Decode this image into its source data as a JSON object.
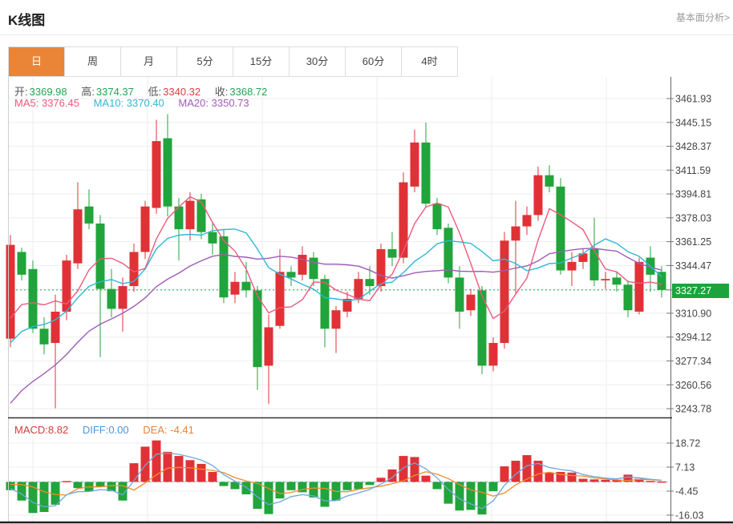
{
  "header": {
    "title": "K线图",
    "link": "基本面分析>"
  },
  "tabs": {
    "items": [
      {
        "label": "日"
      },
      {
        "label": "周"
      },
      {
        "label": "月"
      },
      {
        "label": "5分"
      },
      {
        "label": "15分"
      },
      {
        "label": "30分"
      },
      {
        "label": "60分"
      },
      {
        "label": "4时"
      }
    ],
    "active_index": 0
  },
  "legend": {
    "ohlc": [
      {
        "label": "开:",
        "value": "3369.98",
        "cls": "green"
      },
      {
        "label": "高:",
        "value": "3374.37",
        "cls": "green"
      },
      {
        "label": "低:",
        "value": "3340.32",
        "cls": "red"
      },
      {
        "label": "收:",
        "value": "3368.72",
        "cls": "green"
      }
    ],
    "ma": [
      {
        "label": "MA5:",
        "value": "3376.45"
      },
      {
        "label": "MA10:",
        "value": "3370.40"
      },
      {
        "label": "MA20:",
        "value": "3350.73"
      }
    ],
    "macd": [
      {
        "label": "MACD:",
        "value": "8.82"
      },
      {
        "label": "DIFF:",
        "value": "0.00"
      },
      {
        "label": "DEA:",
        "value": "-4.41"
      }
    ]
  },
  "current_price": "3327.27",
  "chart_data": {
    "type": "candlestick+macd",
    "title": "K线图 daily candlestick with MA5/MA10/MA20 and MACD",
    "axis_main": {
      "ticks": [
        3461.93,
        3445.15,
        3428.37,
        3411.59,
        3394.81,
        3378.03,
        3361.25,
        3344.47,
        3310.9,
        3294.12,
        3277.34,
        3260.56,
        3243.78
      ],
      "tick_step": 16.78,
      "current_price": 3327.27
    },
    "axis_macd": {
      "ticks": [
        18.72,
        7.13,
        -4.45,
        -16.03
      ]
    },
    "candles_ohlc": [
      [
        3293,
        3366,
        3287,
        3359
      ],
      [
        3354,
        3357,
        3334,
        3338
      ],
      [
        3342,
        3348,
        3297,
        3300
      ],
      [
        3300,
        3308,
        3282,
        3289
      ],
      [
        3290,
        3324,
        3244,
        3312
      ],
      [
        3312,
        3352,
        3306,
        3348
      ],
      [
        3346,
        3403,
        3342,
        3384
      ],
      [
        3386,
        3398,
        3370,
        3374
      ],
      [
        3374,
        3380,
        3280,
        3328
      ],
      [
        3328,
        3342,
        3308,
        3314
      ],
      [
        3314,
        3336,
        3298,
        3330
      ],
      [
        3330,
        3360,
        3326,
        3354
      ],
      [
        3354,
        3390,
        3349,
        3386
      ],
      [
        3385,
        3447,
        3381,
        3432
      ],
      [
        3434,
        3451,
        3379,
        3386
      ],
      [
        3386,
        3392,
        3348,
        3370
      ],
      [
        3370,
        3396,
        3362,
        3390
      ],
      [
        3391,
        3395,
        3363,
        3368
      ],
      [
        3368,
        3375,
        3352,
        3360
      ],
      [
        3365,
        3370,
        3318,
        3322
      ],
      [
        3324,
        3340,
        3318,
        3333
      ],
      [
        3333,
        3347,
        3322,
        3327
      ],
      [
        3327,
        3330,
        3257,
        3273
      ],
      [
        3274,
        3310,
        3247,
        3301
      ],
      [
        3302,
        3356,
        3300,
        3340
      ],
      [
        3340,
        3344,
        3330,
        3336
      ],
      [
        3338,
        3358,
        3334,
        3352
      ],
      [
        3350,
        3354,
        3330,
        3335
      ],
      [
        3335,
        3338,
        3287,
        3300
      ],
      [
        3300,
        3316,
        3283,
        3313
      ],
      [
        3312,
        3326,
        3308,
        3321
      ],
      [
        3321,
        3340,
        3318,
        3335
      ],
      [
        3335,
        3344,
        3324,
        3330
      ],
      [
        3330,
        3360,
        3326,
        3356
      ],
      [
        3356,
        3368,
        3344,
        3350
      ],
      [
        3350,
        3410,
        3346,
        3403
      ],
      [
        3400,
        3440,
        3396,
        3431
      ],
      [
        3431,
        3445,
        3385,
        3388
      ],
      [
        3388,
        3392,
        3366,
        3370
      ],
      [
        3371,
        3374,
        3332,
        3336
      ],
      [
        3336,
        3344,
        3300,
        3312
      ],
      [
        3313,
        3328,
        3309,
        3324
      ],
      [
        3327,
        3330,
        3268,
        3274
      ],
      [
        3274,
        3294,
        3270,
        3290
      ],
      [
        3290,
        3368,
        3286,
        3362
      ],
      [
        3362,
        3390,
        3324,
        3372
      ],
      [
        3372,
        3386,
        3366,
        3380
      ],
      [
        3380,
        3414,
        3376,
        3408
      ],
      [
        3408,
        3415,
        3396,
        3400
      ],
      [
        3400,
        3406,
        3338,
        3341
      ],
      [
        3341,
        3354,
        3330,
        3347
      ],
      [
        3347,
        3356,
        3342,
        3353
      ],
      [
        3356,
        3378,
        3330,
        3334
      ],
      [
        3334,
        3340,
        3328,
        3335
      ],
      [
        3336,
        3340,
        3326,
        3331
      ],
      [
        3331,
        3334,
        3308,
        3313
      ],
      [
        3312,
        3350,
        3310,
        3347
      ],
      [
        3350,
        3358,
        3326,
        3338
      ],
      [
        3340,
        3344,
        3322,
        3327.27
      ]
    ],
    "macd_histogram": [
      -4,
      -9,
      -15,
      -14.5,
      -11,
      0.4,
      -3,
      -4.5,
      -2.5,
      -4.5,
      -9,
      9,
      17,
      20,
      14.5,
      12.5,
      10.5,
      8.7,
      4.8,
      -2,
      -3.5,
      -6,
      -13,
      -15.5,
      -8,
      -4,
      -5,
      -7.5,
      -12,
      -9,
      -4,
      -3.5,
      -1.5,
      2,
      6,
      12.5,
      12,
      3,
      -3.5,
      -10.5,
      -13.8,
      -13.5,
      -15.7,
      -4.5,
      7.5,
      10.2,
      12.9,
      10.2,
      4.5,
      4.8,
      4.5,
      1.5,
      1.2,
      1,
      1,
      3.5,
      1.5,
      0.4,
      0.2
    ],
    "ma_seed_prehistory": [
      3150,
      3160,
      3170,
      3180,
      3190,
      3200,
      3210,
      3220,
      3230,
      3240,
      3250,
      3258,
      3266,
      3274,
      3280,
      3286,
      3290,
      3294,
      3296,
      3298
    ],
    "colors": {
      "candle_up": "#E03236",
      "candle_down": "#21A43B",
      "ma5": "#ED5A7B",
      "ma10": "#2FB8D6",
      "ma20": "#A05CB8",
      "diff_line": "#6FA8DC",
      "dea_line": "#F08C2E",
      "macd_bar_pos": "#E03236",
      "macd_bar_neg": "#21A43B",
      "current_price_line": "#21A453",
      "current_price_badge": "#1CA43C",
      "grid": "#ECEEF2",
      "axis_text": "#444444",
      "tab_active_bg": "#EA8538"
    },
    "legend_position": "top-left",
    "grid": true
  }
}
